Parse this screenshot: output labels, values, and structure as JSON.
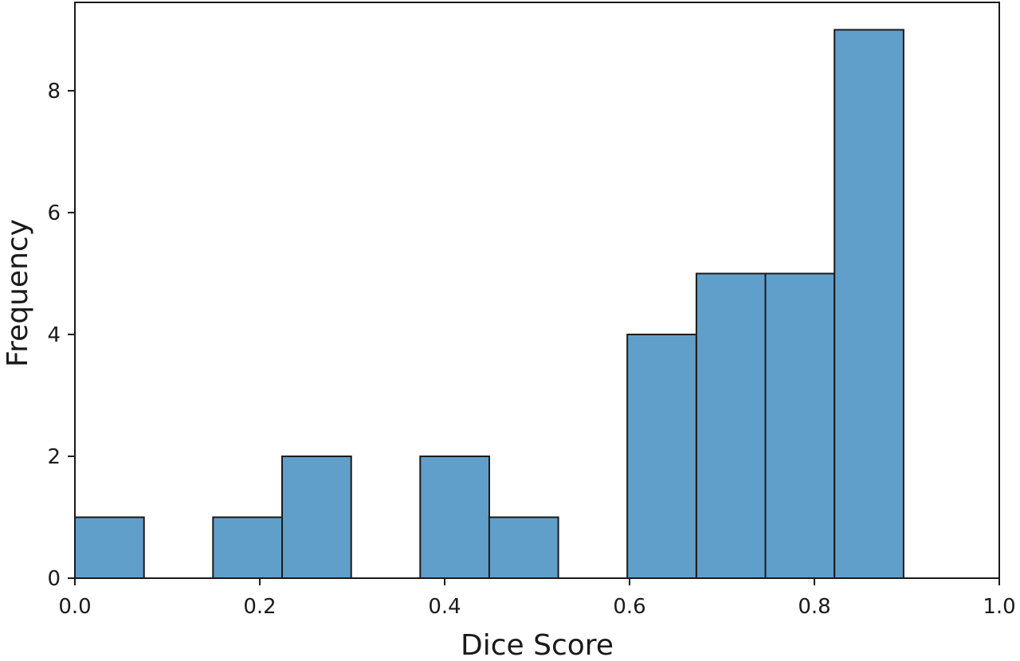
{
  "chart_data": {
    "type": "bar",
    "subtype": "histogram",
    "title": "",
    "xlabel": "Dice Score",
    "ylabel": "Frequency",
    "xlim": [
      0.0,
      1.0
    ],
    "ylim": [
      0,
      9.45
    ],
    "bin_width": 0.0747,
    "bins": [
      {
        "start": 0.0,
        "end": 0.0747,
        "count": 1
      },
      {
        "start": 0.0747,
        "end": 0.1494,
        "count": 0
      },
      {
        "start": 0.1494,
        "end": 0.2241,
        "count": 1
      },
      {
        "start": 0.2241,
        "end": 0.2988,
        "count": 2
      },
      {
        "start": 0.2988,
        "end": 0.3735,
        "count": 0
      },
      {
        "start": 0.3735,
        "end": 0.4482,
        "count": 2
      },
      {
        "start": 0.4482,
        "end": 0.5229,
        "count": 1
      },
      {
        "start": 0.5229,
        "end": 0.5976,
        "count": 0
      },
      {
        "start": 0.5976,
        "end": 0.6723,
        "count": 4
      },
      {
        "start": 0.6723,
        "end": 0.747,
        "count": 5
      },
      {
        "start": 0.747,
        "end": 0.8217,
        "count": 5
      },
      {
        "start": 0.8217,
        "end": 0.8964,
        "count": 9
      }
    ],
    "x_ticks": [
      {
        "value": 0.0,
        "label": "0.0"
      },
      {
        "value": 0.2,
        "label": "0.2"
      },
      {
        "value": 0.4,
        "label": "0.4"
      },
      {
        "value": 0.6,
        "label": "0.6"
      },
      {
        "value": 0.8,
        "label": "0.8"
      },
      {
        "value": 1.0,
        "label": "1.0"
      }
    ],
    "y_ticks": [
      {
        "value": 0,
        "label": "0"
      },
      {
        "value": 2,
        "label": "2"
      },
      {
        "value": 4,
        "label": "4"
      },
      {
        "value": 6,
        "label": "6"
      },
      {
        "value": 8,
        "label": "8"
      }
    ],
    "bar_color": "#619fcb",
    "edge_color": "#1a1a1a",
    "grid": false,
    "legend": "none"
  }
}
